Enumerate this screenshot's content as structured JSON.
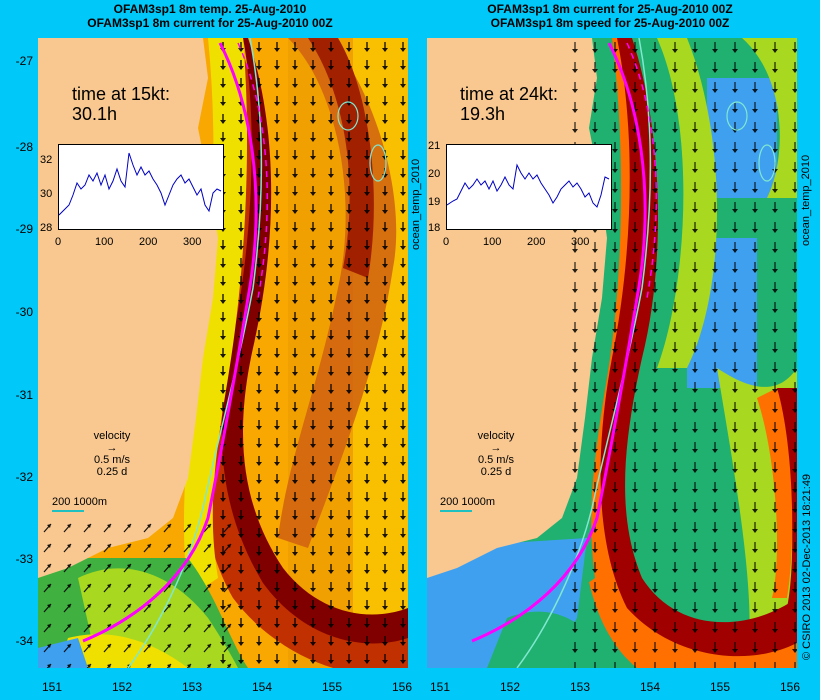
{
  "left_panel": {
    "title_line1": "OFAM3sp1 8m temp. 25-Aug-2010",
    "title_line2": "OFAM3sp1 8m current for 25-Aug-2010 00Z",
    "time_label": "time at 15kt:",
    "time_value": "30.1h",
    "inset_yticks": [
      "32",
      "30",
      "28"
    ],
    "inset_xticks": [
      "0",
      "100",
      "200",
      "300"
    ],
    "velocity_label": "velocity",
    "velocity_speed": "0.5 m/s",
    "velocity_days": "0.25 d",
    "depth_scale": "200  1000m"
  },
  "right_panel": {
    "title_line1": "OFAM3sp1 8m current for 25-Aug-2010 00Z",
    "title_line2": "OFAM3sp1 8m speed for 25-Aug-2010 00Z",
    "time_label": "time at 24kt:",
    "time_value": "19.3h",
    "inset_yticks": [
      "21",
      "20",
      "19",
      "18"
    ],
    "inset_xticks": [
      "0",
      "100",
      "200",
      "300"
    ],
    "velocity_label": "velocity",
    "velocity_speed": "0.5 m/s",
    "velocity_days": "0.25 d",
    "depth_scale": "200  1000m"
  },
  "side_labels": {
    "left_vertical": "ocean_temp_2010",
    "right_vertical": "ocean_temp_2010",
    "credit": "© CSIRO 2013   02-Dec-2013 18:21:49"
  },
  "y_axis_ticks": [
    "-27",
    "-28",
    "-29",
    "-30",
    "-31",
    "-32",
    "-33",
    "-34"
  ],
  "x_axis_ticks": [
    "151",
    "152",
    "153",
    "154",
    "155",
    "156"
  ],
  "colors": {
    "background": "#00c8f8",
    "land": "#f8c890",
    "route": "#ff00ff",
    "contour": "#80e8d0"
  }
}
